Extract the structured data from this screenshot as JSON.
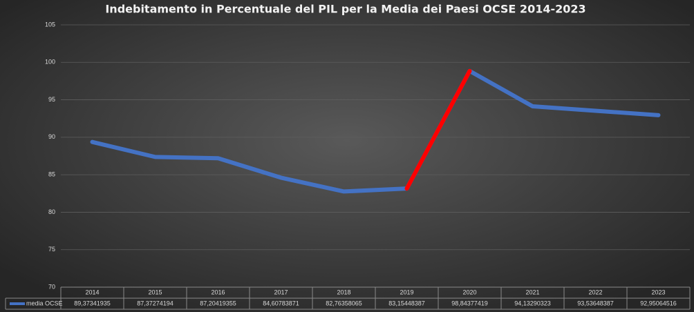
{
  "chart_data": {
    "type": "line",
    "title": "Indebitamento in Percentuale del PIL per la Media dei Paesi OCSE 2014-2023",
    "categories": [
      "2014",
      "2015",
      "2016",
      "2017",
      "2018",
      "2019",
      "2020",
      "2021",
      "2022",
      "2023"
    ],
    "series": [
      {
        "name": "media OCSE",
        "color": "#4472c4",
        "values": [
          89.37341935,
          87.37274194,
          87.20419355,
          84.60783871,
          82.76358065,
          83.15448387,
          98.84377419,
          94.13290323,
          93.53648387,
          92.95064516
        ],
        "value_labels": [
          "89,37341935",
          "87,37274194",
          "87,20419355",
          "84,60783871",
          "82,76358065",
          "83,15448387",
          "98,84377419",
          "94,13290323",
          "93,53648387",
          "92,95064516"
        ],
        "highlight_segment": [
          5,
          6
        ],
        "highlight_color": "#ff0000"
      }
    ],
    "ylim": [
      70,
      105
    ],
    "yticks": [
      70,
      75,
      80,
      85,
      90,
      95,
      100,
      105
    ],
    "grid": true,
    "data_table": true
  }
}
